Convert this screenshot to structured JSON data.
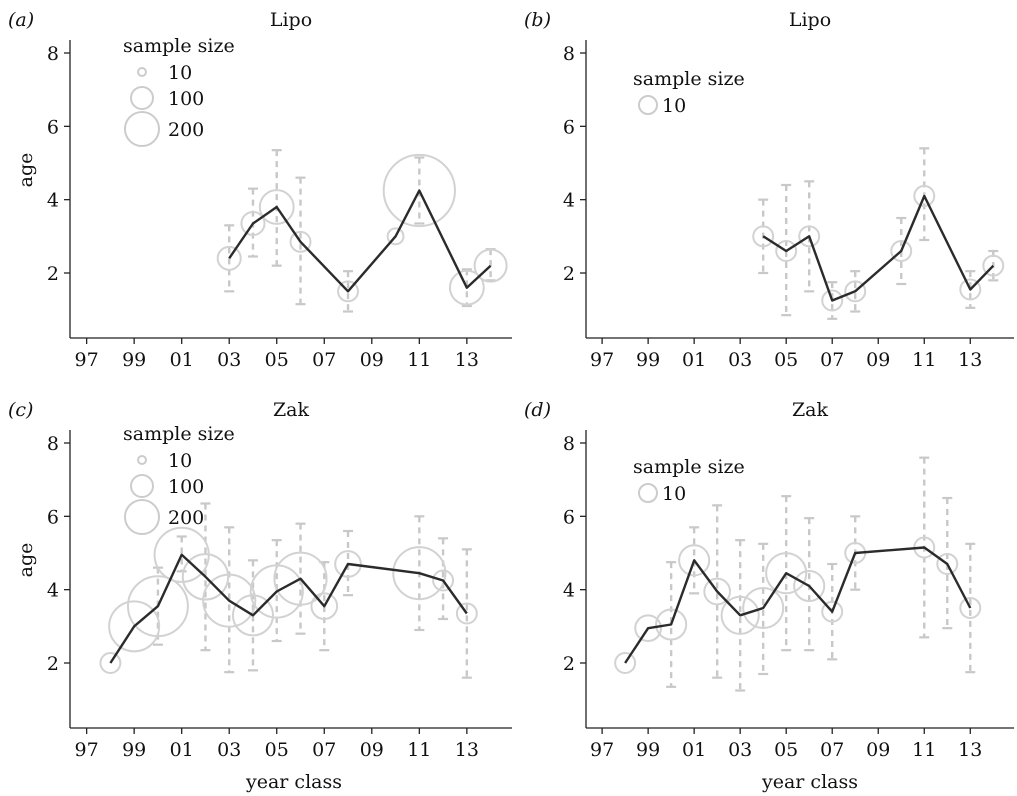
{
  "chart_data": [
    {
      "type": "scatter",
      "panel_label": "(a)",
      "title": "Lipo",
      "xlabel": "",
      "ylabel": "age",
      "xlim": [
        1996.3,
        2014.9
      ],
      "ylim": [
        0,
        8.4
      ],
      "x_ticks": [
        1997,
        1999,
        2001,
        2003,
        2005,
        2007,
        2009,
        2011,
        2013
      ],
      "x_tick_labels": [
        "97",
        "99",
        "01",
        "03",
        "05",
        "07",
        "09",
        "11",
        "13"
      ],
      "y_ticks": [
        2,
        4,
        6,
        8
      ],
      "y_tick_labels": [
        "2",
        "4",
        "6",
        "8"
      ],
      "legend": {
        "title": "sample size",
        "entries": [
          {
            "label": "10",
            "size": 10
          },
          {
            "label": "100",
            "size": 100
          },
          {
            "label": "200",
            "size": 200
          }
        ]
      },
      "points": [
        {
          "x": 2003,
          "y": 2.4,
          "lo": 1.5,
          "hi": 3.3,
          "n": 15
        },
        {
          "x": 2004,
          "y": 3.35,
          "lo": 2.45,
          "hi": 4.3,
          "n": 15
        },
        {
          "x": 2005,
          "y": 3.8,
          "lo": 2.2,
          "hi": 5.35,
          "n": 40
        },
        {
          "x": 2006,
          "y": 2.85,
          "lo": 1.15,
          "hi": 4.6,
          "n": 10
        },
        {
          "x": 2008,
          "y": 1.5,
          "lo": 0.95,
          "hi": 2.05,
          "n": 10
        },
        {
          "x": 2010,
          "y": 3.0,
          "lo": 3.0,
          "hi": 3.0,
          "n": 5
        },
        {
          "x": 2011,
          "y": 4.25,
          "lo": 3.35,
          "hi": 5.15,
          "n": 220
        },
        {
          "x": 2013,
          "y": 1.6,
          "lo": 1.1,
          "hi": 2.1,
          "n": 40
        },
        {
          "x": 2014,
          "y": 2.2,
          "lo": 1.8,
          "hi": 2.65,
          "n": 35
        }
      ]
    },
    {
      "type": "scatter",
      "panel_label": "(b)",
      "title": "Lipo",
      "xlabel": "",
      "ylabel": "",
      "xlim": [
        1996.3,
        2014.9
      ],
      "ylim": [
        0,
        8.4
      ],
      "x_ticks": [
        1997,
        1999,
        2001,
        2003,
        2005,
        2007,
        2009,
        2011,
        2013
      ],
      "x_tick_labels": [
        "97",
        "99",
        "01",
        "03",
        "05",
        "07",
        "09",
        "11",
        "13"
      ],
      "y_ticks": [
        2,
        4,
        6,
        8
      ],
      "y_tick_labels": [
        "2",
        "4",
        "6",
        "8"
      ],
      "legend": {
        "title": "sample size",
        "entries": [
          {
            "label": "10",
            "size": 10
          }
        ]
      },
      "points": [
        {
          "x": 2004,
          "y": 3.0,
          "lo": 2.0,
          "hi": 4.0,
          "n": 10
        },
        {
          "x": 2005,
          "y": 2.6,
          "lo": 0.85,
          "hi": 4.4,
          "n": 10
        },
        {
          "x": 2006,
          "y": 3.0,
          "lo": 1.5,
          "hi": 4.5,
          "n": 10
        },
        {
          "x": 2007,
          "y": 1.25,
          "lo": 0.75,
          "hi": 1.75,
          "n": 10
        },
        {
          "x": 2008,
          "y": 1.5,
          "lo": 0.95,
          "hi": 2.05,
          "n": 10
        },
        {
          "x": 2010,
          "y": 2.6,
          "lo": 1.7,
          "hi": 3.5,
          "n": 10
        },
        {
          "x": 2011,
          "y": 4.1,
          "lo": 2.9,
          "hi": 5.4,
          "n": 10
        },
        {
          "x": 2013,
          "y": 1.55,
          "lo": 1.05,
          "hi": 2.05,
          "n": 10
        },
        {
          "x": 2014,
          "y": 2.2,
          "lo": 1.8,
          "hi": 2.6,
          "n": 10
        }
      ]
    },
    {
      "type": "scatter",
      "panel_label": "(c)",
      "title": "Zak",
      "xlabel": "year class",
      "ylabel": "age",
      "xlim": [
        1996.3,
        2014.9
      ],
      "ylim": [
        0,
        8.4
      ],
      "x_ticks": [
        1997,
        1999,
        2001,
        2003,
        2005,
        2007,
        2009,
        2011,
        2013
      ],
      "x_tick_labels": [
        "97",
        "99",
        "01",
        "03",
        "05",
        "07",
        "09",
        "11",
        "13"
      ],
      "y_ticks": [
        2,
        4,
        6,
        8
      ],
      "y_tick_labels": [
        "2",
        "4",
        "6",
        "8"
      ],
      "legend": {
        "title": "sample size",
        "entries": [
          {
            "label": "10",
            "size": 10
          },
          {
            "label": "100",
            "size": 100
          },
          {
            "label": "200",
            "size": 200
          }
        ]
      },
      "points": [
        {
          "x": 1998,
          "y": 2.0,
          "lo": 2.0,
          "hi": 2.0,
          "n": 10
        },
        {
          "x": 1999,
          "y": 3.0,
          "lo": 3.0,
          "hi": 3.0,
          "n": 100
        },
        {
          "x": 2000,
          "y": 3.55,
          "lo": 2.5,
          "hi": 4.6,
          "n": 150
        },
        {
          "x": 2001,
          "y": 4.95,
          "lo": 4.5,
          "hi": 5.45,
          "n": 120
        },
        {
          "x": 2002,
          "y": 4.35,
          "lo": 2.35,
          "hi": 6.35,
          "n": 80
        },
        {
          "x": 2003,
          "y": 3.7,
          "lo": 1.75,
          "hi": 5.7,
          "n": 110
        },
        {
          "x": 2004,
          "y": 3.3,
          "lo": 1.8,
          "hi": 4.8,
          "n": 60
        },
        {
          "x": 2005,
          "y": 3.95,
          "lo": 2.6,
          "hi": 5.35,
          "n": 110
        },
        {
          "x": 2006,
          "y": 4.3,
          "lo": 2.8,
          "hi": 5.8,
          "n": 110
        },
        {
          "x": 2007,
          "y": 3.55,
          "lo": 2.35,
          "hi": 4.75,
          "n": 20
        },
        {
          "x": 2008,
          "y": 4.7,
          "lo": 3.85,
          "hi": 5.6,
          "n": 20
        },
        {
          "x": 2011,
          "y": 4.45,
          "lo": 2.9,
          "hi": 6.0,
          "n": 110
        },
        {
          "x": 2012,
          "y": 4.25,
          "lo": 3.2,
          "hi": 5.4,
          "n": 10
        },
        {
          "x": 2013,
          "y": 3.35,
          "lo": 1.6,
          "hi": 5.1,
          "n": 10
        }
      ]
    },
    {
      "type": "scatter",
      "panel_label": "(d)",
      "title": "Zak",
      "xlabel": "year class",
      "ylabel": "",
      "xlim": [
        1996.3,
        2014.9
      ],
      "ylim": [
        0,
        8.4
      ],
      "x_ticks": [
        1997,
        1999,
        2001,
        2003,
        2005,
        2007,
        2009,
        2011,
        2013
      ],
      "x_tick_labels": [
        "97",
        "99",
        "01",
        "03",
        "05",
        "07",
        "09",
        "11",
        "13"
      ],
      "y_ticks": [
        2,
        4,
        6,
        8
      ],
      "y_tick_labels": [
        "2",
        "4",
        "6",
        "8"
      ],
      "legend": {
        "title": "sample size",
        "entries": [
          {
            "label": "10",
            "size": 10
          }
        ]
      },
      "points": [
        {
          "x": 1998,
          "y": 2.0,
          "lo": 2.0,
          "hi": 2.0,
          "n": 10
        },
        {
          "x": 1999,
          "y": 2.95,
          "lo": 2.95,
          "hi": 2.95,
          "n": 20
        },
        {
          "x": 2000,
          "y": 3.05,
          "lo": 1.35,
          "hi": 4.75,
          "n": 30
        },
        {
          "x": 2001,
          "y": 4.8,
          "lo": 3.9,
          "hi": 5.7,
          "n": 30
        },
        {
          "x": 2002,
          "y": 3.95,
          "lo": 1.6,
          "hi": 6.3,
          "n": 20
        },
        {
          "x": 2003,
          "y": 3.3,
          "lo": 1.25,
          "hi": 5.35,
          "n": 50
        },
        {
          "x": 2004,
          "y": 3.5,
          "lo": 1.7,
          "hi": 5.25,
          "n": 60
        },
        {
          "x": 2005,
          "y": 4.45,
          "lo": 2.35,
          "hi": 6.55,
          "n": 60
        },
        {
          "x": 2006,
          "y": 4.1,
          "lo": 2.35,
          "hi": 5.95,
          "n": 30
        },
        {
          "x": 2007,
          "y": 3.4,
          "lo": 2.1,
          "hi": 4.7,
          "n": 10
        },
        {
          "x": 2008,
          "y": 5.0,
          "lo": 4.0,
          "hi": 6.0,
          "n": 10
        },
        {
          "x": 2011,
          "y": 5.15,
          "lo": 2.7,
          "hi": 7.6,
          "n": 10
        },
        {
          "x": 2012,
          "y": 4.7,
          "lo": 2.95,
          "hi": 6.5,
          "n": 10
        },
        {
          "x": 2013,
          "y": 3.5,
          "lo": 1.75,
          "hi": 5.25,
          "n": 10
        }
      ]
    }
  ],
  "colors": {
    "line": "#2b2b2b",
    "bubble": "#d2d2d2",
    "error_bar": "#c8c8c8",
    "axis": "#222222"
  }
}
